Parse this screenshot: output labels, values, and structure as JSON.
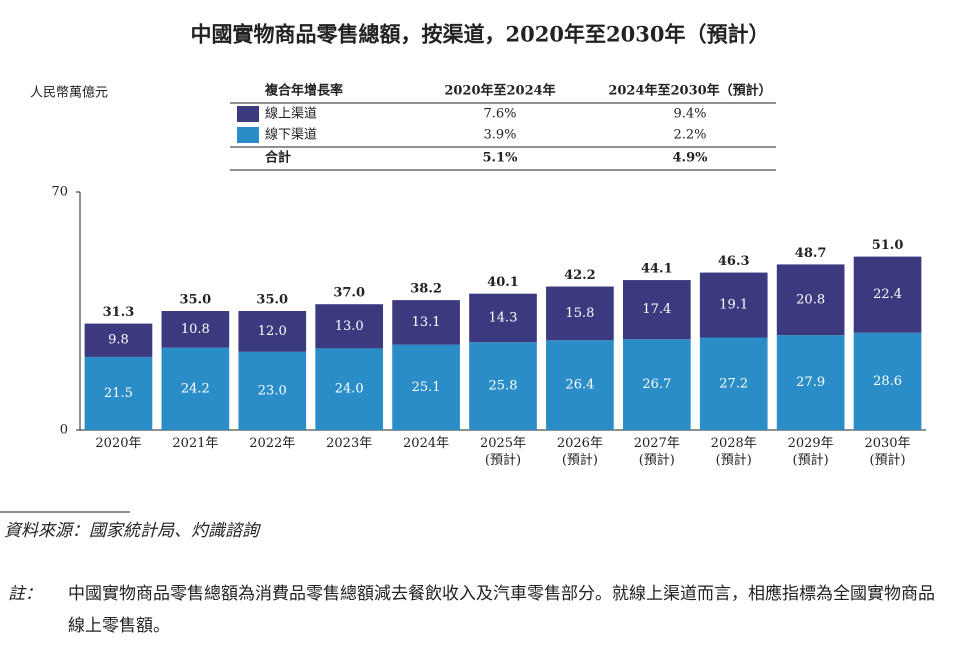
{
  "chart_data": {
    "type": "stacked_bar",
    "title": "中國實物商品零售總額，按渠道，2020年至2030年（預計）",
    "y_unit_label": "人民幣萬億元",
    "categories": [
      "2020年",
      "2021年",
      "2022年",
      "2023年",
      "2024年",
      "2025年\n(預計)",
      "2026年\n(預計)",
      "2027年\n(預計)",
      "2028年\n(預計)",
      "2029年\n(預計)",
      "2030年\n(預計)"
    ],
    "series": [
      {
        "name": "線下渠道",
        "color": "#2b8dc7",
        "values": [
          21.5,
          24.2,
          23.0,
          24.0,
          25.1,
          25.8,
          26.4,
          26.7,
          27.2,
          27.9,
          28.6
        ],
        "value_labels": [
          "21.5",
          "24.2",
          "23.0",
          "24.0",
          "25.1",
          "25.8",
          "26.4",
          "26.7",
          "27.2",
          "27.9",
          "28.6"
        ]
      },
      {
        "name": "線上渠道",
        "color": "#3c3a7e",
        "values": [
          9.8,
          10.8,
          12.0,
          13.0,
          13.1,
          14.3,
          15.8,
          17.4,
          19.1,
          20.8,
          22.4
        ],
        "value_labels": [
          "9.8",
          "10.8",
          "12.0",
          "13.0",
          "13.1",
          "14.3",
          "15.8",
          "17.4",
          "19.1",
          "20.8",
          "22.4"
        ]
      }
    ],
    "total_labels": [
      "31.3",
      "35.0",
      "35.0",
      "37.0",
      "38.2",
      "40.1",
      "42.2",
      "44.1",
      "46.3",
      "48.7",
      "51.0"
    ],
    "ylim": [
      0,
      70
    ],
    "yticks": [
      0,
      70
    ],
    "grid": false,
    "cagr_table": {
      "header": [
        "複合年增長率",
        "2020年至2024年",
        "2024年至2030年（預計）"
      ],
      "rows": [
        {
          "series_index": 1,
          "values": [
            "7.6%",
            "9.4%"
          ]
        },
        {
          "series_index": 0,
          "values": [
            "3.9%",
            "2.2%"
          ]
        }
      ],
      "total": {
        "name": "合計",
        "values": [
          "5.1%",
          "4.9%"
        ]
      }
    }
  },
  "source": "資料來源：國家統計局、灼識諮詢",
  "note": {
    "label": "註：",
    "text": "中國實物商品零售總額為消費品零售總額減去餐飲收入及汽車零售部分。就線上渠道而言，相應指標為全國實物商品線上零售額。"
  }
}
